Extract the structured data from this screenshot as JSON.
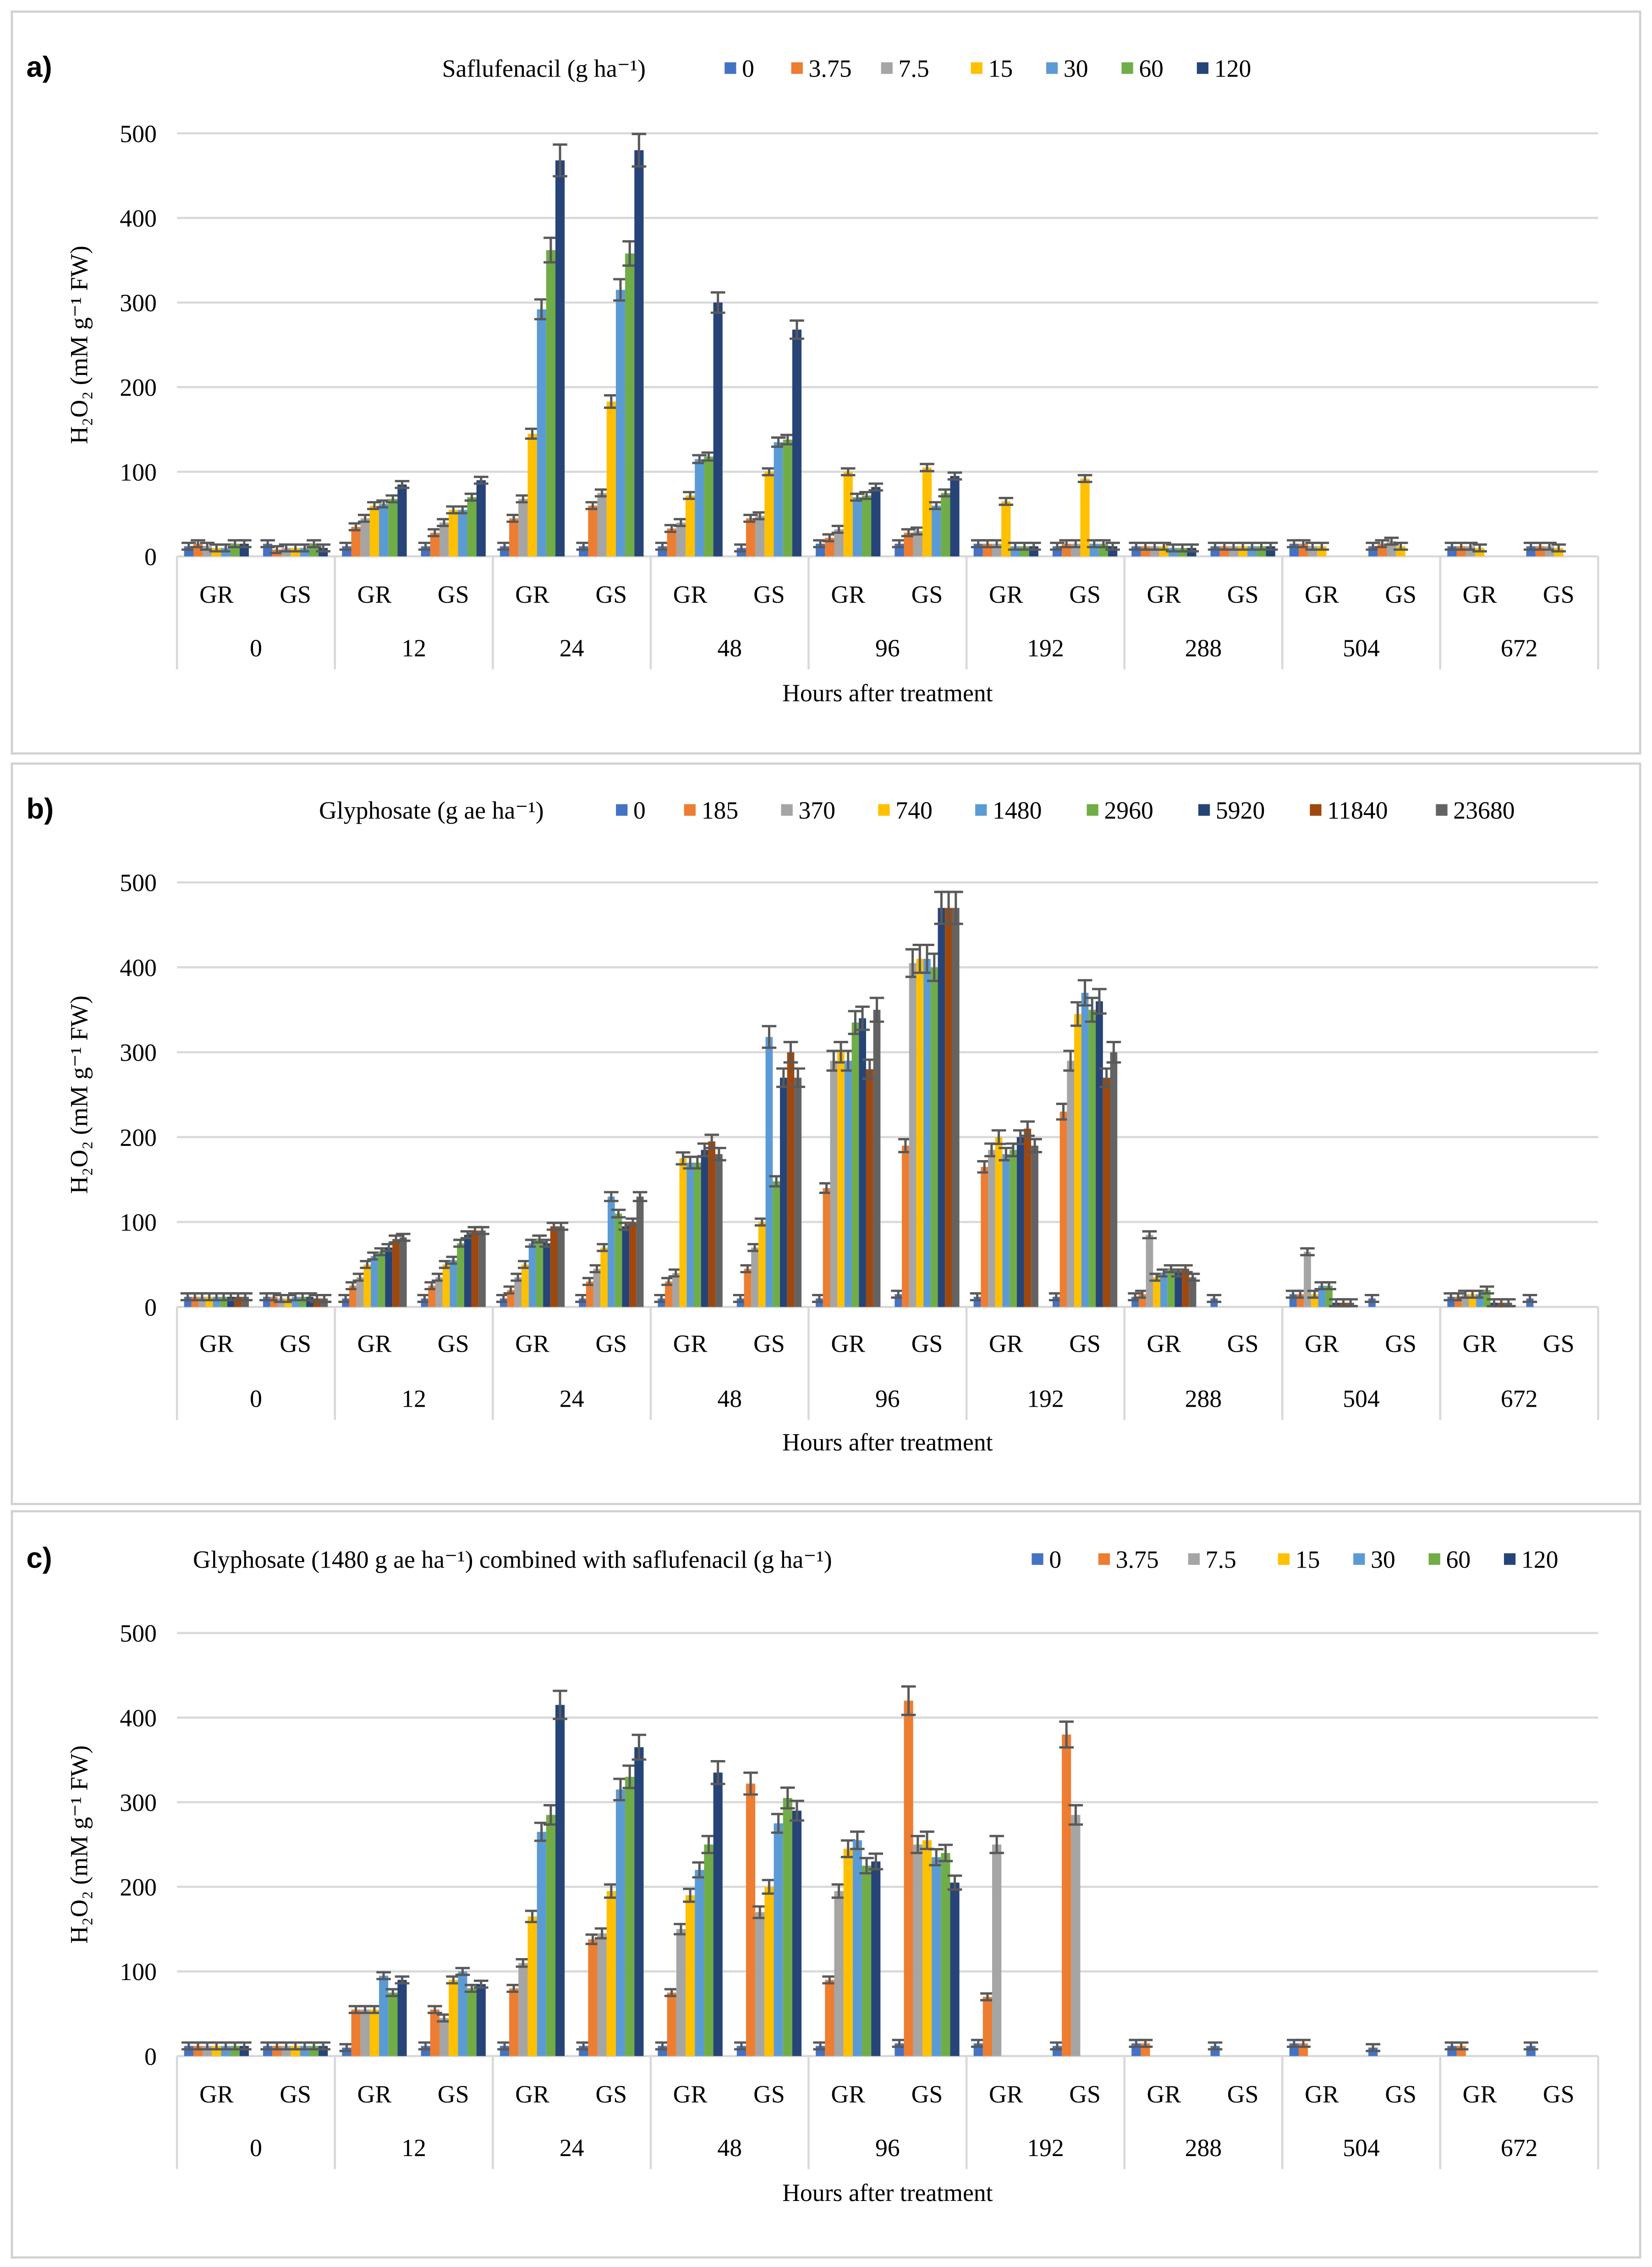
{
  "colors": [
    "#4472C4",
    "#ED7D31",
    "#A5A5A5",
    "#FFC000",
    "#5B9BD5",
    "#70AD47",
    "#264478",
    "#9E480E",
    "#636363"
  ],
  "chart_data": [
    {
      "type": "bar",
      "panel_label": "a)",
      "legend_title": "Saflufenacil (g ha⁻¹)",
      "ylabel": "H₂O₂ (mM g⁻¹ FW)",
      "xlabel": "Hours after treatment",
      "ylim": [
        0,
        500
      ],
      "yticks": [
        "0",
        "100",
        "200",
        "300",
        "400",
        "500"
      ],
      "hours": [
        "0",
        "12",
        "24",
        "48",
        "96",
        "192",
        "288",
        "504",
        "672"
      ],
      "subgroups": [
        "GR",
        "GS"
      ],
      "series": [
        {
          "name": "0",
          "values": [
            12,
            15,
            12,
            12,
            12,
            12,
            12,
            10,
            15,
            15,
            15,
            12,
            12,
            12,
            15,
            12,
            12,
            12
          ]
        },
        {
          "name": "3.75",
          "values": [
            15,
            8,
            35,
            28,
            45,
            60,
            33,
            45,
            22,
            28,
            15,
            15,
            12,
            12,
            15,
            15,
            12,
            12
          ]
        },
        {
          "name": "7.5",
          "values": [
            12,
            10,
            45,
            40,
            68,
            75,
            40,
            48,
            32,
            30,
            15,
            15,
            12,
            12,
            12,
            18,
            12,
            12
          ]
        },
        {
          "name": "15",
          "values": [
            10,
            10,
            60,
            55,
            145,
            183,
            72,
            100,
            100,
            105,
            65,
            92,
            12,
            12,
            12,
            12,
            10,
            10
          ]
        },
        {
          "name": "30",
          "values": [
            10,
            10,
            62,
            55,
            292,
            315,
            115,
            135,
            70,
            60,
            12,
            15,
            10,
            12,
            0,
            0,
            0,
            0
          ]
        },
        {
          "name": "60",
          "values": [
            15,
            15,
            68,
            70,
            362,
            358,
            118,
            138,
            72,
            75,
            12,
            15,
            10,
            12,
            0,
            0,
            0,
            0
          ]
        },
        {
          "name": "120",
          "values": [
            15,
            10,
            85,
            90,
            468,
            480,
            300,
            268,
            82,
            95,
            12,
            12,
            10,
            12,
            0,
            0,
            0,
            0
          ]
        }
      ]
    },
    {
      "type": "bar",
      "panel_label": "b)",
      "legend_title": "Glyphosate (g ae ha⁻¹)",
      "ylabel": "H₂O₂ (mM g⁻¹ FW)",
      "xlabel": "Hours after treatment",
      "ylim": [
        0,
        500
      ],
      "yticks": [
        "0",
        "100",
        "200",
        "300",
        "400",
        "500"
      ],
      "hours": [
        "0",
        "12",
        "24",
        "48",
        "96",
        "192",
        "288",
        "504",
        "672"
      ],
      "subgroups": [
        "GR",
        "GS"
      ],
      "series": [
        {
          "name": "0",
          "values": [
            12,
            12,
            10,
            10,
            10,
            10,
            10,
            10,
            10,
            15,
            12,
            12,
            12,
            10,
            15,
            10,
            12,
            10
          ]
        },
        {
          "name": "185",
          "values": [
            12,
            12,
            25,
            25,
            20,
            30,
            30,
            45,
            140,
            190,
            165,
            230,
            15,
            0,
            15,
            0,
            12,
            0
          ]
        },
        {
          "name": "370",
          "values": [
            12,
            10,
            35,
            35,
            35,
            45,
            40,
            70,
            290,
            405,
            185,
            290,
            85,
            0,
            65,
            0,
            15,
            0
          ]
        },
        {
          "name": "740",
          "values": [
            12,
            10,
            50,
            50,
            50,
            70,
            175,
            100,
            300,
            410,
            200,
            345,
            35,
            0,
            15,
            0,
            15,
            0
          ]
        },
        {
          "name": "1480",
          "values": [
            12,
            12,
            60,
            55,
            75,
            130,
            170,
            318,
            290,
            410,
            180,
            370,
            40,
            0,
            25,
            0,
            15,
            0
          ]
        },
        {
          "name": "2960",
          "values": [
            12,
            12,
            65,
            75,
            80,
            110,
            170,
            148,
            335,
            400,
            185,
            350,
            45,
            0,
            25,
            0,
            20,
            0
          ]
        },
        {
          "name": "5920",
          "values": [
            12,
            12,
            70,
            85,
            75,
            95,
            185,
            270,
            340,
            470,
            200,
            360,
            40,
            0,
            5,
            0,
            5,
            0
          ]
        },
        {
          "name": "11840",
          "values": [
            12,
            10,
            80,
            90,
            95,
            100,
            195,
            300,
            280,
            470,
            210,
            270,
            45,
            0,
            5,
            0,
            5,
            0
          ]
        },
        {
          "name": "23680",
          "values": [
            12,
            10,
            82,
            90,
            95,
            130,
            180,
            270,
            350,
            470,
            190,
            300,
            35,
            0,
            5,
            0,
            5,
            0
          ]
        }
      ]
    },
    {
      "type": "bar",
      "panel_label": "c)",
      "legend_title": "Glyphosate (1480 g ae ha⁻¹) combined with saflufenacil (g ha⁻¹)",
      "ylabel": "H₂O₂ (mM g⁻¹ FW)",
      "xlabel": "Hours after treatment",
      "ylim": [
        0,
        500
      ],
      "yticks": [
        "0",
        "100",
        "200",
        "300",
        "400",
        "500"
      ],
      "hours": [
        "0",
        "12",
        "24",
        "48",
        "96",
        "192",
        "288",
        "504",
        "672"
      ],
      "subgroups": [
        "GR",
        "GS"
      ],
      "series": [
        {
          "name": "0",
          "values": [
            12,
            12,
            10,
            12,
            12,
            12,
            12,
            12,
            12,
            15,
            15,
            12,
            15,
            12,
            15,
            10,
            12,
            12
          ]
        },
        {
          "name": "3.75",
          "values": [
            12,
            12,
            55,
            55,
            80,
            138,
            75,
            322,
            90,
            420,
            70,
            380,
            15,
            0,
            15,
            0,
            12,
            0
          ]
        },
        {
          "name": "7.5",
          "values": [
            12,
            12,
            55,
            45,
            110,
            145,
            150,
            170,
            195,
            250,
            250,
            285,
            0,
            0,
            0,
            0,
            0,
            0
          ]
        },
        {
          "name": "15",
          "values": [
            12,
            12,
            55,
            90,
            165,
            195,
            190,
            200,
            245,
            255,
            0,
            0,
            0,
            0,
            0,
            0,
            0,
            0
          ]
        },
        {
          "name": "30",
          "values": [
            12,
            12,
            95,
            100,
            265,
            315,
            220,
            275,
            255,
            235,
            0,
            0,
            0,
            0,
            0,
            0,
            0,
            0
          ]
        },
        {
          "name": "60",
          "values": [
            12,
            12,
            75,
            80,
            285,
            330,
            250,
            305,
            225,
            240,
            0,
            0,
            0,
            0,
            0,
            0,
            0,
            0
          ]
        },
        {
          "name": "120",
          "values": [
            12,
            12,
            90,
            85,
            415,
            365,
            335,
            290,
            230,
            205,
            0,
            0,
            0,
            0,
            0,
            0,
            0,
            0
          ]
        }
      ]
    }
  ]
}
